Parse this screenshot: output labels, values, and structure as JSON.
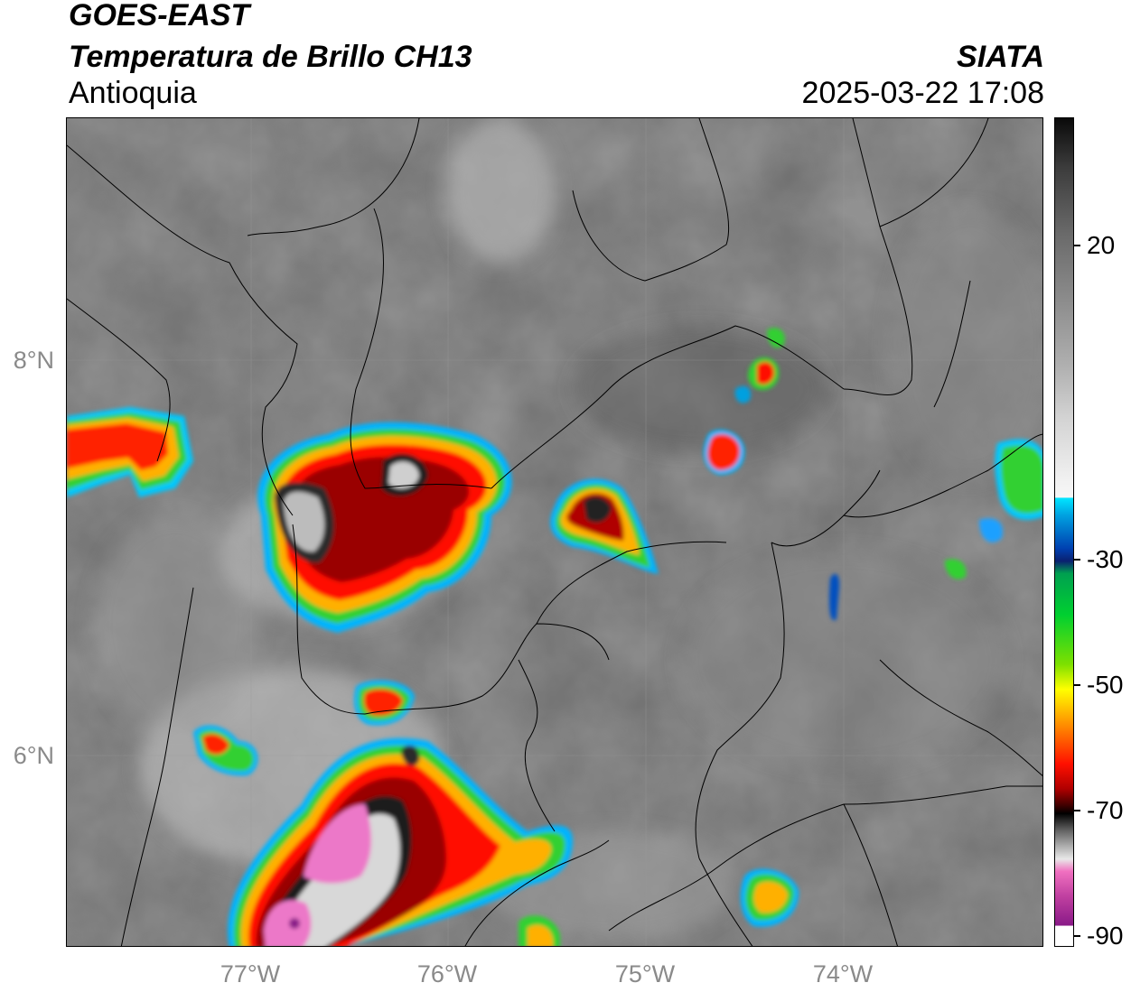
{
  "header": {
    "satellite": "GOES-EAST",
    "product": "Temperatura de Brillo CH13",
    "region": "Antioquia",
    "agency": "SIATA",
    "timestamp": "2025-03-22 17:08"
  },
  "map": {
    "latitude_labels": [
      "8°N",
      "6°N"
    ],
    "longitude_labels": [
      "77°W",
      "76°W",
      "75°W",
      "74°W"
    ],
    "background_color": "#6e6e6e",
    "border_color": "#000000"
  },
  "colorbar": {
    "tick_labels": [
      "20",
      "-30",
      "-50",
      "-70",
      "-90"
    ],
    "scale": "brightness temperature grayscale / enhanced color",
    "colors": {
      "warm": "#0a0a0a",
      "cold_cyan": "#00e5ff",
      "green": "#00d030",
      "yellow": "#ffff00",
      "red": "#ff1000",
      "deep_red": "#400000",
      "magenta": "#c040a0"
    }
  }
}
